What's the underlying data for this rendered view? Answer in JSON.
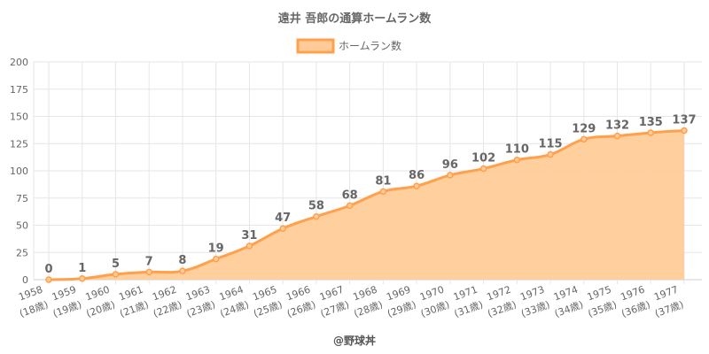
{
  "chart_data": {
    "type": "area",
    "title": "遠井 吾郎の通算ホームラン数",
    "legend": {
      "label": "ホームラン数",
      "position": "top"
    },
    "x": [
      "1958",
      "1959",
      "1960",
      "1961",
      "1962",
      "1963",
      "1964",
      "1965",
      "1966",
      "1967",
      "1968",
      "1969",
      "1970",
      "1971",
      "1972",
      "1973",
      "1974",
      "1975",
      "1976",
      "1977"
    ],
    "x_sub": [
      "(18歳)",
      "(19歳)",
      "(20歳)",
      "(21歳)",
      "(22歳)",
      "(23歳)",
      "(24歳)",
      "(25歳)",
      "(26歳)",
      "(27歳)",
      "(28歳)",
      "(29歳)",
      "(30歳)",
      "(31歳)",
      "(32歳)",
      "(33歳)",
      "(34歳)",
      "(35歳)",
      "(36歳)",
      "(37歳)"
    ],
    "series": [
      {
        "name": "ホームラン数",
        "values": [
          0,
          1,
          5,
          7,
          8,
          19,
          31,
          47,
          58,
          68,
          81,
          86,
          96,
          102,
          110,
          115,
          129,
          132,
          135,
          137
        ]
      }
    ],
    "ylim": [
      0,
      200
    ],
    "yticks": [
      0,
      25,
      50,
      75,
      100,
      125,
      150,
      175,
      200
    ],
    "grid": true,
    "colors": {
      "line": "#FFA04D",
      "fill": "#FFCC99",
      "grid": "#E6E6E6",
      "axis": "#CCCCCC"
    }
  },
  "footer": {
    "credit": "@野球丼"
  }
}
